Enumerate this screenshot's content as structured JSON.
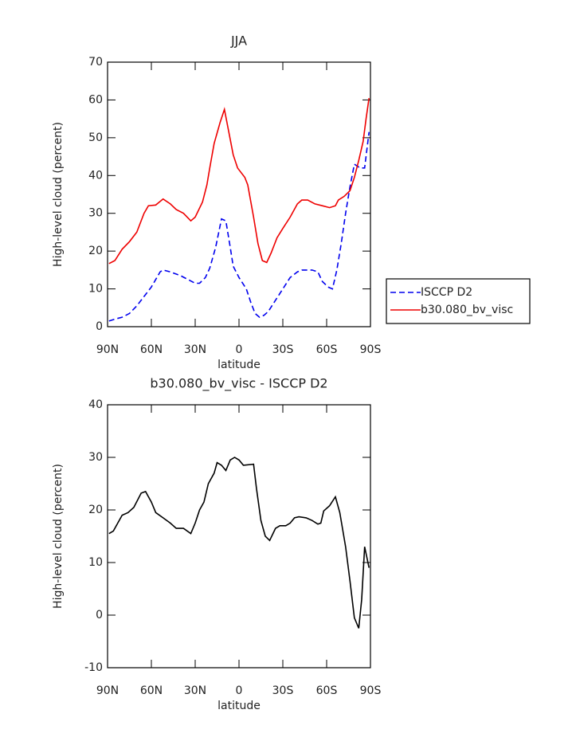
{
  "chart_data": [
    {
      "type": "line",
      "title": "JJA",
      "xlabel": "latitude",
      "ylabel": "High-level cloud (percent)",
      "xlim": [
        90,
        -90
      ],
      "xticks": [
        {
          "value": 90,
          "label": "90N"
        },
        {
          "value": 60,
          "label": "60N"
        },
        {
          "value": 30,
          "label": "30N"
        },
        0,
        {
          "value": -30,
          "label": "30S"
        },
        {
          "value": -60,
          "label": "60S"
        },
        {
          "value": -90,
          "label": "90S"
        }
      ],
      "ylim": [
        0,
        70
      ],
      "yticks": [
        0,
        10,
        20,
        30,
        40,
        50,
        60,
        70
      ],
      "legend": "right",
      "series": [
        {
          "name": "ISCCP D2",
          "color": "#0000ee",
          "linestyle": "dashed",
          "x": [
            89,
            85,
            80,
            75,
            70,
            65,
            60,
            57,
            54,
            52,
            47,
            40,
            35,
            30,
            27,
            23,
            20,
            16,
            12,
            9,
            6,
            4,
            0,
            -5,
            -8,
            -11,
            -14,
            -17,
            -20,
            -25,
            -30,
            -35,
            -40,
            -43,
            -50,
            -54,
            -57,
            -61,
            -64,
            -67,
            -70,
            -73,
            -76,
            -79,
            -83,
            -86,
            -89
          ],
          "values": [
            1.5,
            2,
            2.5,
            3.5,
            5.5,
            8,
            10.5,
            12.5,
            14.5,
            15,
            14.5,
            13.5,
            12.5,
            11.5,
            11.5,
            13,
            15.5,
            21,
            28.5,
            28,
            21,
            16,
            13,
            10,
            6.5,
            3.5,
            2.5,
            3,
            4,
            7,
            10,
            13,
            14.5,
            15,
            15,
            14.5,
            12,
            10.5,
            10,
            15,
            22,
            30,
            37,
            43,
            42,
            42,
            51.5
          ]
        },
        {
          "name": "b30.080_bv_visc",
          "color": "#ee0000",
          "linestyle": "solid",
          "x": [
            89,
            85,
            80,
            75,
            70,
            65,
            62,
            57,
            52,
            47,
            43,
            38,
            33,
            30,
            25,
            22,
            20,
            17,
            13,
            10,
            7,
            4,
            1,
            -4,
            -6,
            -10,
            -13,
            -16,
            -19,
            -22,
            -26,
            -30,
            -35,
            -40,
            -43,
            -47,
            -52,
            -57,
            -62,
            -66,
            -68,
            -72,
            -76,
            -79,
            -82,
            -85,
            -87,
            -89
          ],
          "values": [
            16.7,
            17.5,
            20.5,
            22.5,
            25,
            30,
            32,
            32.2,
            33.8,
            32.5,
            31,
            30,
            28,
            29,
            33,
            37.5,
            42,
            48.5,
            54,
            57.5,
            51.5,
            45.5,
            42,
            39.5,
            37.5,
            29,
            22,
            17.5,
            17,
            19.5,
            23.5,
            26,
            29,
            32.5,
            33.5,
            33.5,
            32.5,
            32,
            31.5,
            32,
            33.5,
            34.5,
            36,
            39.5,
            44,
            49,
            55,
            60.5
          ]
        }
      ]
    },
    {
      "type": "line",
      "title": "b30.080_bv_visc - ISCCP D2",
      "xlabel": "latitude",
      "ylabel": "High-level cloud (percent)",
      "xlim": [
        90,
        -90
      ],
      "xticks": [
        {
          "value": 90,
          "label": "90N"
        },
        {
          "value": 60,
          "label": "60N"
        },
        {
          "value": 30,
          "label": "30N"
        },
        0,
        {
          "value": -30,
          "label": "30S"
        },
        {
          "value": -60,
          "label": "60S"
        },
        {
          "value": -90,
          "label": "90S"
        }
      ],
      "ylim": [
        -10,
        40
      ],
      "yticks": [
        -10,
        0,
        10,
        20,
        30,
        40
      ],
      "series": [
        {
          "color": "#000000",
          "linestyle": "solid",
          "x": [
            89,
            86,
            83,
            80,
            76,
            72,
            67,
            64,
            60,
            57,
            52,
            47,
            43,
            38,
            33,
            30,
            27,
            24,
            21,
            17,
            15,
            12,
            9,
            6,
            3,
            0,
            -3,
            -10,
            -12,
            -15,
            -18,
            -21,
            -25,
            -28,
            -32,
            -35,
            -38,
            -41,
            -46,
            -50,
            -54,
            -56,
            -58,
            -62,
            -66,
            -69,
            -73,
            -76,
            -79,
            -82,
            -84,
            -86,
            -89
          ],
          "values": [
            15.5,
            16,
            17.5,
            19,
            19.5,
            20.5,
            23.2,
            23.5,
            21.5,
            19.5,
            18.5,
            17.5,
            16.5,
            16.5,
            15.5,
            17.5,
            20,
            21.5,
            25,
            27,
            29,
            28.5,
            27.5,
            29.5,
            30,
            29.5,
            28.5,
            28.7,
            24,
            18,
            15,
            14.2,
            16.5,
            17,
            17,
            17.5,
            18.5,
            18.7,
            18.5,
            18,
            17.3,
            17.5,
            19.8,
            20.8,
            22.5,
            19.5,
            13,
            6.5,
            -0.5,
            -2.5,
            3,
            13,
            9
          ]
        }
      ]
    }
  ]
}
